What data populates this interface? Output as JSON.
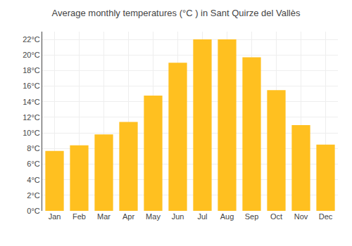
{
  "chart_data": {
    "type": "bar",
    "title": "Average monthly temperatures (°C ) in Sant Quirze del Vallès",
    "categories": [
      "Jan",
      "Feb",
      "Mar",
      "Apr",
      "May",
      "Jun",
      "Jul",
      "Aug",
      "Sep",
      "Oct",
      "Nov",
      "Dec"
    ],
    "values": [
      7.7,
      8.4,
      9.8,
      11.4,
      14.8,
      19.0,
      22.0,
      22.0,
      19.7,
      15.5,
      11.0,
      8.5
    ],
    "color": "#FFC020",
    "ylim": [
      0,
      23
    ],
    "yticks": [
      {
        "value": 0,
        "label": "0°C"
      },
      {
        "value": 2,
        "label": "2°C"
      },
      {
        "value": 4,
        "label": "4°C"
      },
      {
        "value": 6,
        "label": "6°C"
      },
      {
        "value": 8,
        "label": "8°C"
      },
      {
        "value": 10,
        "label": "10°C"
      },
      {
        "value": 12,
        "label": "12°C"
      },
      {
        "value": 14,
        "label": "14°C"
      },
      {
        "value": 16,
        "label": "16°C"
      },
      {
        "value": 18,
        "label": "18°C"
      },
      {
        "value": 20,
        "label": "20°C"
      },
      {
        "value": 22,
        "label": "22°C"
      }
    ],
    "grid": true
  }
}
